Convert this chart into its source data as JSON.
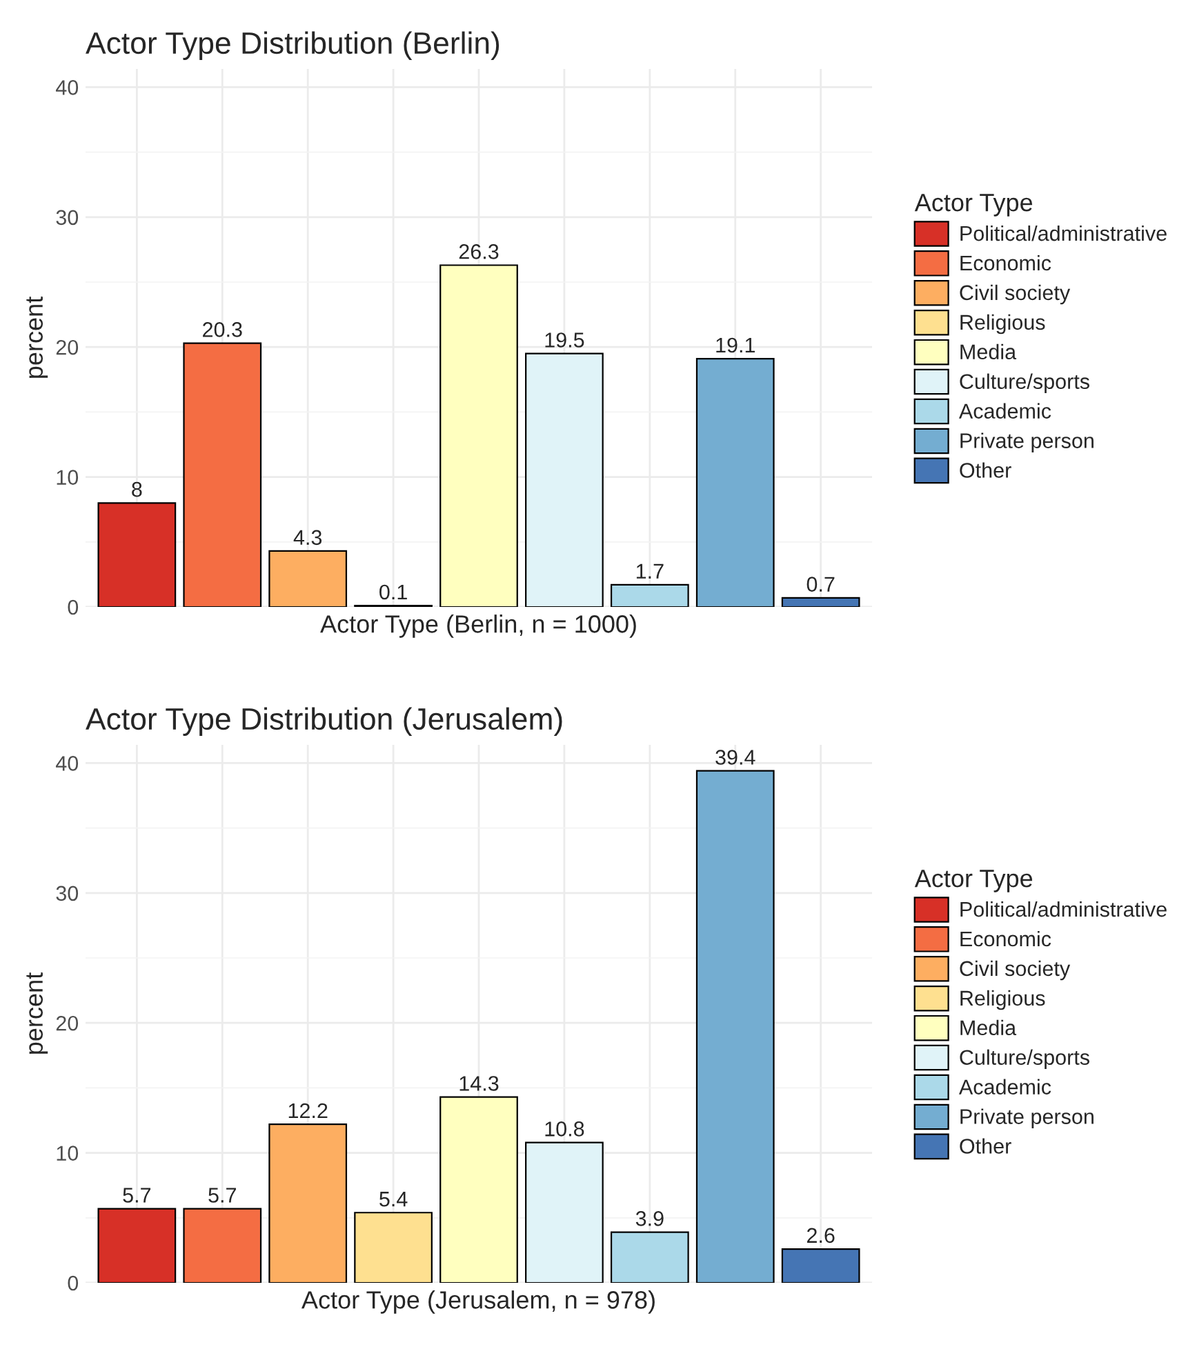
{
  "chart_data": [
    {
      "type": "bar",
      "title": "Actor Type Distribution (Berlin)",
      "xlabel": "Actor Type (Berlin, n = 1000)",
      "ylabel": "percent",
      "legend_title": "Actor Type",
      "categories": [
        null,
        null,
        null,
        null,
        null,
        null,
        null,
        null,
        null
      ],
      "stacked": true,
      "series": [
        {
          "name": "Political/administrative",
          "color": "#d73027",
          "values": [
            8,
            null,
            null,
            null,
            null,
            null,
            null,
            null,
            null
          ]
        },
        {
          "name": "Economic",
          "color": "#f46d43",
          "values": [
            null,
            20.3,
            null,
            null,
            null,
            null,
            null,
            null,
            null
          ]
        },
        {
          "name": "Civil society",
          "color": "#fdae61",
          "values": [
            null,
            null,
            4.3,
            null,
            null,
            null,
            null,
            null,
            null
          ]
        },
        {
          "name": "Religious",
          "color": "#fee090",
          "values": [
            null,
            null,
            null,
            0.1,
            null,
            null,
            null,
            null,
            null
          ]
        },
        {
          "name": "Media",
          "color": "#ffffbf",
          "values": [
            null,
            null,
            null,
            null,
            26.3,
            null,
            null,
            null,
            null
          ]
        },
        {
          "name": "Culture/sports",
          "color": "#e0f3f8",
          "values": [
            null,
            null,
            null,
            null,
            null,
            19.5,
            null,
            null,
            null
          ]
        },
        {
          "name": "Academic",
          "color": "#abd9e9",
          "values": [
            null,
            null,
            null,
            null,
            null,
            null,
            1.7,
            null,
            null
          ]
        },
        {
          "name": "Private person",
          "color": "#74add1",
          "values": [
            null,
            null,
            null,
            null,
            null,
            null,
            null,
            19.1,
            null
          ]
        },
        {
          "name": "Other",
          "color": "#4575b4",
          "values": [
            null,
            null,
            null,
            null,
            null,
            null,
            null,
            null,
            0.7
          ]
        }
      ],
      "ylim": [
        0,
        41.4
      ],
      "yticks": [
        0,
        10,
        20,
        30,
        40
      ],
      "grid": true,
      "legend": "right",
      "tick_labels": "y",
      "data_labels": true
    },
    {
      "type": "bar",
      "title": "Actor Type Distribution (Jerusalem)",
      "xlabel": "Actor Type (Jerusalem, n = 978)",
      "ylabel": "percent",
      "legend_title": "Actor Type",
      "categories": [
        null,
        null,
        null,
        null,
        null,
        null,
        null,
        null,
        null
      ],
      "stacked": true,
      "series": [
        {
          "name": "Political/administrative",
          "color": "#d73027",
          "values": [
            5.7,
            null,
            null,
            null,
            null,
            null,
            null,
            null,
            null
          ]
        },
        {
          "name": "Economic",
          "color": "#f46d43",
          "values": [
            null,
            5.7,
            null,
            null,
            null,
            null,
            null,
            null,
            null
          ]
        },
        {
          "name": "Civil society",
          "color": "#fdae61",
          "values": [
            null,
            null,
            12.2,
            null,
            null,
            null,
            null,
            null,
            null
          ]
        },
        {
          "name": "Religious",
          "color": "#fee090",
          "values": [
            null,
            null,
            null,
            5.4,
            null,
            null,
            null,
            null,
            null
          ]
        },
        {
          "name": "Media",
          "color": "#ffffbf",
          "values": [
            null,
            null,
            null,
            null,
            14.3,
            null,
            null,
            null,
            null
          ]
        },
        {
          "name": "Culture/sports",
          "color": "#e0f3f8",
          "values": [
            null,
            null,
            null,
            null,
            null,
            10.8,
            null,
            null,
            null
          ]
        },
        {
          "name": "Academic",
          "color": "#abd9e9",
          "values": [
            null,
            null,
            null,
            null,
            null,
            null,
            3.9,
            null,
            null
          ]
        },
        {
          "name": "Private person",
          "color": "#74add1",
          "values": [
            null,
            null,
            null,
            null,
            null,
            null,
            null,
            39.4,
            null
          ]
        },
        {
          "name": "Other",
          "color": "#4575b4",
          "values": [
            null,
            null,
            null,
            null,
            null,
            null,
            null,
            null,
            2.6
          ]
        }
      ],
      "ylim": [
        0,
        41.4
      ],
      "yticks": [
        0,
        10,
        20,
        30,
        40
      ],
      "grid": true,
      "legend": "right",
      "tick_labels": "y",
      "data_labels": true
    }
  ]
}
